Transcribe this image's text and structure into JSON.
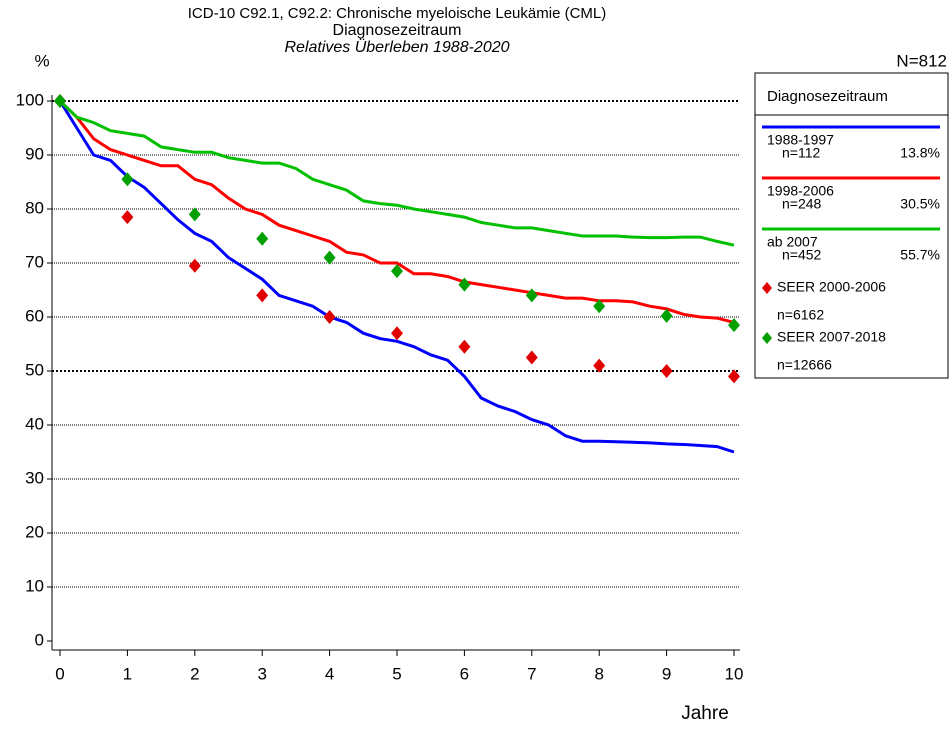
{
  "chart_data": {
    "type": "line",
    "title": "ICD-10 C92.1, C92.2: Chronische myeloische Leukämie (CML)",
    "subtitle": "Diagnosezeitraum",
    "subtitle2": "Relatives Überleben 1988-2020",
    "total": "N=812",
    "y_label": "%",
    "x_label": "Jahre",
    "xlim": [
      0,
      10
    ],
    "xticks": [
      0,
      1,
      2,
      3,
      4,
      5,
      6,
      7,
      8,
      9,
      10
    ],
    "ylim": [
      0,
      100
    ],
    "yticks": [
      0,
      10,
      20,
      30,
      40,
      50,
      60,
      70,
      80,
      90,
      100
    ],
    "grid": true,
    "legend_title": "Diagnosezeitraum",
    "x": [
      0,
      0.25,
      0.5,
      0.75,
      1,
      1.25,
      1.5,
      1.75,
      2,
      2.25,
      2.5,
      2.75,
      3,
      3.25,
      3.5,
      3.75,
      4,
      4.25,
      4.5,
      4.75,
      5,
      5.25,
      5.5,
      5.75,
      6,
      6.25,
      6.5,
      6.75,
      7,
      7.25,
      7.5,
      7.75,
      8,
      8.25,
      8.5,
      8.75,
      9,
      9.25,
      9.5,
      9.75,
      10
    ],
    "series": [
      {
        "name": "1988-1997",
        "n": "n=112",
        "share": "13.8%",
        "color": "#0000ff",
        "values": [
          100,
          95,
          90,
          89,
          86,
          84,
          81,
          78,
          75.5,
          74,
          71,
          69,
          67,
          64,
          63,
          62,
          60,
          59,
          57,
          56,
          55.5,
          54.5,
          53,
          52,
          49,
          45,
          43.5,
          42.5,
          41,
          40,
          38,
          37,
          37,
          36.9,
          36.8,
          36.7,
          36.5,
          36.4,
          36.2,
          36,
          35
        ]
      },
      {
        "name": "1998-2006",
        "n": "n=248",
        "share": "30.5%",
        "color": "#ff0000",
        "values": [
          100,
          97,
          93,
          91,
          90,
          89,
          88,
          88,
          85.5,
          84.5,
          82,
          80,
          79,
          77,
          76,
          75,
          74,
          72,
          71.5,
          70,
          70,
          68,
          68,
          67.5,
          66.5,
          66,
          65.5,
          65,
          64.5,
          64,
          63.5,
          63.5,
          63,
          63,
          62.8,
          62,
          61.5,
          60.5,
          60,
          59.8,
          59
        ]
      },
      {
        "name": "ab 2007",
        "n": "n=452",
        "share": "55.7%",
        "color": "#00c000",
        "values": [
          100,
          97,
          96,
          94.5,
          94,
          93.5,
          91.5,
          91,
          90.5,
          90.5,
          89.5,
          89,
          88.5,
          88.5,
          87.5,
          85.5,
          84.5,
          83.5,
          81.5,
          81,
          80.7,
          80,
          79.5,
          79,
          78.5,
          77.5,
          77,
          76.5,
          76.5,
          76,
          75.5,
          75,
          75,
          75,
          74.8,
          74.7,
          74.7,
          74.8,
          74.8,
          74,
          73.3
        ]
      }
    ],
    "points": [
      {
        "name": "SEER 2000-2006",
        "n": "n=6162",
        "color": "#e00000",
        "x": [
          0,
          1,
          2,
          3,
          4,
          5,
          6,
          7,
          8,
          9,
          10
        ],
        "values": [
          100,
          78.5,
          69.5,
          64,
          60,
          57,
          54.5,
          52.5,
          51,
          50,
          49
        ]
      },
      {
        "name": "SEER 2007-2018",
        "n": "n=12666",
        "color": "#00a000",
        "x": [
          0,
          1,
          2,
          3,
          4,
          5,
          6,
          7,
          8,
          9,
          10
        ],
        "values": [
          100,
          85.5,
          79,
          74.5,
          71,
          68.5,
          66,
          64,
          62,
          60.2,
          58.5
        ]
      }
    ]
  }
}
